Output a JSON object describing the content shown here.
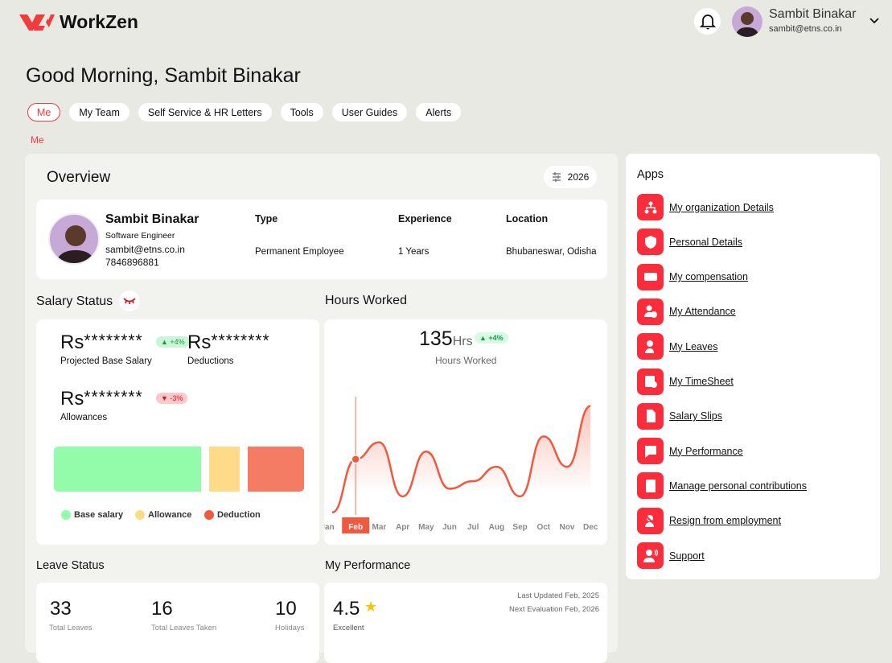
{
  "brand": {
    "name": "WorkZen",
    "color": "#ef3d3d"
  },
  "header": {
    "user_name": "Sambit Binakar",
    "user_email": "sambit@etns.co.in",
    "icons": [
      "bell-icon",
      "chevron-down-icon"
    ]
  },
  "greeting": "Good Morning, Sambit Binakar",
  "tabs": [
    {
      "label": "Me",
      "active": true
    },
    {
      "label": "My Team"
    },
    {
      "label": "Self Service & HR Letters"
    },
    {
      "label": "Tools"
    },
    {
      "label": "User Guides"
    },
    {
      "label": "Alerts"
    }
  ],
  "breadcrumb": "Me",
  "overview": {
    "title": "Overview",
    "year": "2026",
    "profile": {
      "name": "Sambit Binakar",
      "role": "Software Engineer",
      "email": "sambit@etns.co.in",
      "phone": "7846896881"
    },
    "fields": [
      {
        "label": "Type",
        "value": "Permanent Employee"
      },
      {
        "label": "Experience",
        "value": "1 Years"
      },
      {
        "label": "Location",
        "value": "Bhubaneswar, Odisha"
      }
    ]
  },
  "salary": {
    "title": "Salary Status",
    "currency": "Rs",
    "masked": "********",
    "projected": {
      "label": "Projected Base Salary",
      "change": "+4%"
    },
    "deductions": {
      "label": "Deductions"
    },
    "allowances": {
      "label": "Allowances",
      "change": "-3%"
    },
    "breakdown": [
      {
        "name": "Base salary",
        "share": 63,
        "color": "#92fcab"
      },
      {
        "name": "Allowance",
        "share": 13,
        "color": "#ffdb89"
      },
      {
        "name": "Deduction",
        "share": 24,
        "color": "#f47b64"
      }
    ]
  },
  "hours": {
    "title": "Hours Worked",
    "value": "135",
    "unit": "Hrs",
    "change": "+4%",
    "caption": "Hours Worked",
    "selected": "Feb"
  },
  "chart_data": {
    "type": "area",
    "x": [
      "Jan",
      "Feb",
      "Mar",
      "Apr",
      "May",
      "Jun",
      "Jul",
      "Aug",
      "Sep",
      "Oct",
      "Nov",
      "Dec"
    ],
    "values": [
      3,
      66,
      86,
      22,
      75,
      31,
      40,
      57,
      22,
      93,
      57,
      129
    ],
    "ylim": [
      0,
      150
    ],
    "grid": false,
    "color": "#f0593d"
  },
  "leave": {
    "title": "Leave Status",
    "stats": [
      {
        "value": "33",
        "label": "Total Leaves"
      },
      {
        "value": "16",
        "label": "Total Leaves Taken"
      },
      {
        "value": "10",
        "label": "Holidays"
      }
    ]
  },
  "performance": {
    "title": "My Performance",
    "rating": "4.5",
    "rating_label": "Excellent",
    "last_updated": "Last Updated Feb, 2025",
    "next_evaluation": "Next Evaluation Feb, 2026"
  },
  "apps": {
    "title": "Apps",
    "items": [
      {
        "label": "My organization Details",
        "icon": "org-chart-icon"
      },
      {
        "label": "Personal Details",
        "icon": "user-shield-icon"
      },
      {
        "label": "My compensation",
        "icon": "money-card-icon"
      },
      {
        "label": "My Attendance",
        "icon": "user-clock-icon"
      },
      {
        "label": "My Leaves",
        "icon": "user-x-icon"
      },
      {
        "label": "My TimeSheet",
        "icon": "timesheet-icon"
      },
      {
        "label": "Salary Slips",
        "icon": "document-icon"
      },
      {
        "label": "My Performance",
        "icon": "star-message-icon"
      },
      {
        "label": "Manage personal contributions",
        "icon": "list-receipt-icon"
      },
      {
        "label": "Resign from employment",
        "icon": "user-slash-icon"
      },
      {
        "label": "Support",
        "icon": "support-icon"
      }
    ]
  }
}
